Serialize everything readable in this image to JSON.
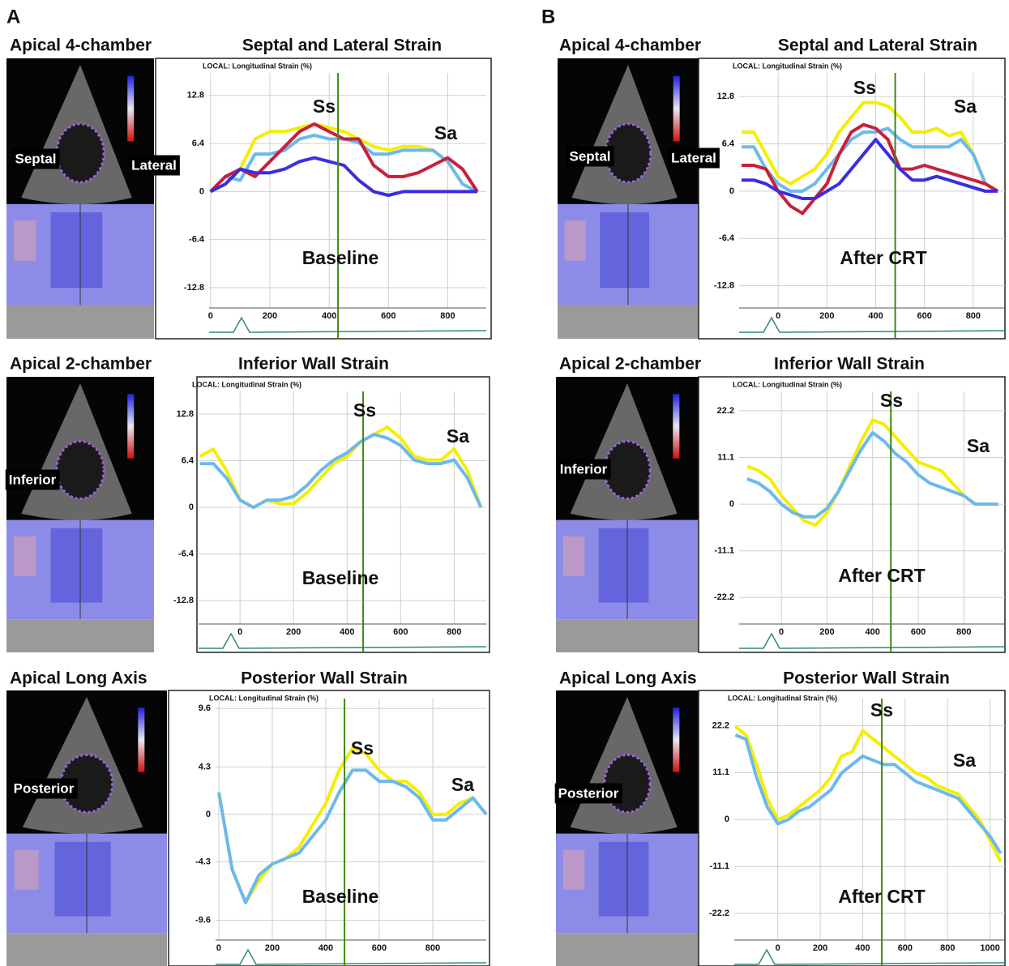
{
  "panel_labels": [
    "A",
    "B"
  ],
  "chart_data": [
    {
      "type": "line",
      "view": "Apical 4-chamber",
      "title": "Septal and Lateral Strain",
      "y_label": "LOCAL: Longitudinal Strain (%)",
      "condition": "Baseline",
      "annotations": [
        "Ss",
        "Sa"
      ],
      "wall_labels": [
        "Septal",
        "Lateral"
      ],
      "x": [
        0,
        50,
        100,
        150,
        200,
        250,
        300,
        350,
        400,
        450,
        500,
        550,
        600,
        650,
        700,
        750,
        800,
        850,
        900
      ],
      "series": [
        {
          "color": "#f4ee00",
          "values": [
            0,
            1,
            3,
            7,
            8,
            8,
            8.5,
            9,
            8.5,
            8,
            7,
            6,
            5.5,
            6,
            6,
            5.5,
            4,
            1,
            0
          ]
        },
        {
          "color": "#6cb9ec",
          "values": [
            0,
            2,
            1.5,
            5,
            5,
            5.5,
            7,
            7.5,
            7,
            7,
            6.5,
            5,
            5,
            5.5,
            5.5,
            5.5,
            4,
            1,
            0
          ]
        },
        {
          "color": "#c8203c",
          "values": [
            0,
            2,
            3,
            2,
            4,
            6,
            8,
            9,
            8,
            7,
            7,
            3.5,
            2,
            2,
            2.5,
            3.5,
            4.5,
            3,
            0
          ]
        },
        {
          "color": "#3a2ee0",
          "values": [
            0,
            1,
            3,
            2.5,
            2.5,
            3,
            4,
            4.5,
            4,
            3.5,
            1.5,
            0,
            -0.5,
            0,
            0,
            0,
            0,
            0,
            0
          ]
        }
      ],
      "xlim": [
        -5,
        930
      ],
      "ylim": [
        -15.5,
        15.8
      ],
      "xticks": [
        0,
        200,
        400,
        600,
        800
      ],
      "yticks": [
        12.8,
        6.4,
        0.0,
        -6.4,
        -12.8
      ],
      "grid": true,
      "marker_x": 430
    },
    {
      "type": "line",
      "view": "Apical 2-chamber",
      "title": "Inferior Wall Strain",
      "y_label": "LOCAL: Longitudinal Strain (%)",
      "condition": "Baseline",
      "annotations": [
        "Ss",
        "Sa"
      ],
      "wall_labels": [
        "Inferior"
      ],
      "x": [
        -150,
        -100,
        -50,
        0,
        50,
        100,
        150,
        200,
        250,
        300,
        350,
        400,
        450,
        500,
        550,
        600,
        650,
        700,
        750,
        800,
        850,
        900
      ],
      "series": [
        {
          "color": "#f4ee00",
          "values": [
            7,
            8,
            5,
            1,
            0,
            1,
            0.5,
            0.5,
            2,
            4,
            6,
            7,
            9,
            10,
            11,
            9.5,
            7,
            6.5,
            6.5,
            8,
            5,
            0
          ]
        },
        {
          "color": "#6cb9ec",
          "values": [
            6,
            6,
            4,
            1,
            0,
            1,
            1,
            1.5,
            3,
            5,
            6.5,
            7.5,
            9,
            10,
            9.5,
            8.5,
            6.5,
            6,
            6,
            6.5,
            4,
            0
          ]
        }
      ],
      "xlim": [
        -155,
        920
      ],
      "ylim": [
        -16,
        15.9
      ],
      "xticks": [
        0,
        200,
        400,
        600,
        800
      ],
      "yticks": [
        12.8,
        6.4,
        0.0,
        -6.4,
        -12.8
      ],
      "grid": true,
      "marker_x": 460
    },
    {
      "type": "line",
      "view": "Apical Long Axis",
      "title": "Posterior Wall Strain",
      "y_label": "LOCAL: Longitudinal Strain (%)",
      "condition": "Baseline",
      "annotations": [
        "Ss",
        "Sa"
      ],
      "wall_labels": [
        "Posterior"
      ],
      "x": [
        0,
        50,
        100,
        150,
        200,
        250,
        300,
        350,
        400,
        450,
        500,
        550,
        600,
        650,
        700,
        750,
        800,
        850,
        900,
        950,
        1000
      ],
      "series": [
        {
          "color": "#f4ee00",
          "values": [
            2,
            -5,
            -8,
            -6,
            -4.5,
            -4,
            -3,
            -1,
            1,
            4,
            6,
            5.5,
            4,
            3,
            3,
            2,
            0,
            0,
            1,
            1.5,
            0
          ]
        },
        {
          "color": "#6cb9ec",
          "values": [
            2,
            -5,
            -8,
            -5.5,
            -4.5,
            -4,
            -3.5,
            -2,
            -0.5,
            2,
            4,
            4,
            3,
            3,
            2.5,
            1.5,
            -0.5,
            -0.5,
            0.5,
            1.5,
            0
          ]
        }
      ],
      "xlim": [
        -12,
        1000
      ],
      "ylim": [
        -11.4,
        10.5
      ],
      "xticks": [
        0,
        200,
        400,
        600,
        800
      ],
      "yticks": [
        9.6,
        4.3,
        0.0,
        -4.3,
        -9.6
      ],
      "grid": true,
      "marker_x": 470
    },
    {
      "type": "line",
      "view": "Apical 4-chamber",
      "title": "Septal and Lateral Strain",
      "y_label": "LOCAL: Longitudinal Strain (%)",
      "condition": "After CRT",
      "annotations": [
        "Ss",
        "Sa"
      ],
      "wall_labels": [
        "Septal",
        "Lateral"
      ],
      "x": [
        -150,
        -100,
        -50,
        0,
        50,
        100,
        150,
        200,
        250,
        300,
        350,
        400,
        450,
        500,
        550,
        600,
        650,
        700,
        750,
        800,
        850,
        900
      ],
      "series": [
        {
          "color": "#f4ee00",
          "values": [
            8,
            8,
            5,
            2,
            1,
            2,
            3,
            5,
            8,
            10,
            12,
            12,
            11.5,
            10,
            8,
            8,
            8.5,
            7.5,
            8,
            5,
            1,
            0
          ]
        },
        {
          "color": "#6cb9ec",
          "values": [
            6,
            6,
            3,
            1,
            0,
            0,
            1,
            3,
            5,
            7,
            8,
            8,
            8.5,
            7,
            6,
            6,
            6,
            6,
            7,
            5,
            1,
            0
          ]
        },
        {
          "color": "#c8203c",
          "values": [
            3.5,
            3.5,
            3,
            0,
            -2,
            -3,
            -1,
            1,
            5,
            8,
            9,
            8.5,
            7,
            3,
            3,
            3.5,
            3,
            2.5,
            2,
            1.5,
            1,
            0
          ]
        },
        {
          "color": "#3a2ee0",
          "values": [
            1.5,
            1.5,
            1,
            0,
            -0.5,
            -1,
            -1,
            0,
            1,
            3,
            5,
            7,
            5,
            3,
            1.5,
            1.5,
            2,
            1.5,
            1,
            0.5,
            0,
            0
          ]
        }
      ],
      "xlim": [
        -160,
        930
      ],
      "ylim": [
        -15.8,
        16
      ],
      "xticks": [
        0,
        200,
        400,
        600,
        800
      ],
      "yticks": [
        12.8,
        6.4,
        0.0,
        -6.4,
        -12.8
      ],
      "grid": true,
      "marker_x": 480
    },
    {
      "type": "line",
      "view": "Apical 2-chamber",
      "title": "Inferior Wall Strain",
      "y_label": "LOCAL: Longitudinal Strain (%)",
      "condition": "After CRT",
      "annotations": [
        "Ss",
        "Sa"
      ],
      "wall_labels": [
        "Inferior"
      ],
      "x": [
        -150,
        -100,
        -50,
        0,
        50,
        100,
        150,
        200,
        250,
        300,
        350,
        400,
        450,
        500,
        550,
        600,
        650,
        700,
        750,
        800,
        850,
        900,
        950
      ],
      "series": [
        {
          "color": "#f4ee00",
          "values": [
            9,
            8,
            6,
            2,
            -1,
            -4,
            -5,
            -2,
            3,
            9,
            15,
            20,
            19,
            16,
            13,
            10,
            9,
            8,
            5,
            2,
            0,
            0,
            0
          ]
        },
        {
          "color": "#6cb9ec",
          "values": [
            6,
            5,
            3,
            0,
            -2,
            -3,
            -3,
            -1,
            3,
            8,
            13,
            17,
            15,
            12,
            10,
            7,
            5,
            4,
            3,
            2,
            0,
            0,
            0
          ]
        }
      ],
      "xlim": [
        -185,
        980
      ],
      "ylim": [
        -28.5,
        26.8
      ],
      "xticks": [
        0,
        200,
        400,
        600,
        800
      ],
      "yticks": [
        22.2,
        11.1,
        0.0,
        -11.1,
        -22.2
      ],
      "grid": true,
      "marker_x": 480
    },
    {
      "type": "line",
      "view": "Apical Long Axis",
      "title": "Posterior Wall Strain",
      "y_label": "LOCAL: Longitudinal Strain (%)",
      "condition": "After CRT",
      "annotations": [
        "Ss",
        "Sa"
      ],
      "wall_labels": [
        "Posterior"
      ],
      "x": [
        -200,
        -150,
        -100,
        -50,
        0,
        50,
        100,
        150,
        200,
        250,
        300,
        350,
        400,
        450,
        500,
        550,
        600,
        650,
        700,
        750,
        800,
        850,
        900,
        950,
        1000,
        1050
      ],
      "series": [
        {
          "color": "#f4ee00",
          "values": [
            22,
            20,
            13,
            5,
            0,
            1,
            3,
            5,
            7,
            10,
            15,
            16,
            21,
            19,
            17,
            15,
            13,
            11,
            10,
            8,
            7,
            6,
            3,
            0,
            -5,
            -10
          ]
        },
        {
          "color": "#6cb9ec",
          "values": [
            20,
            19,
            10,
            3,
            -1,
            0,
            2,
            3,
            5,
            7,
            11,
            13,
            15,
            14,
            13,
            13,
            11,
            9,
            8,
            7,
            6,
            5,
            2,
            -1,
            -4,
            -8
          ]
        }
      ],
      "xlim": [
        -205,
        1070
      ],
      "ylim": [
        -28.5,
        28.6
      ],
      "xticks": [
        0,
        200,
        400,
        600,
        800,
        1000
      ],
      "yticks": [
        22.2,
        11.1,
        0.0,
        -11.1,
        -22.2
      ],
      "grid": true,
      "marker_x": 490
    }
  ]
}
